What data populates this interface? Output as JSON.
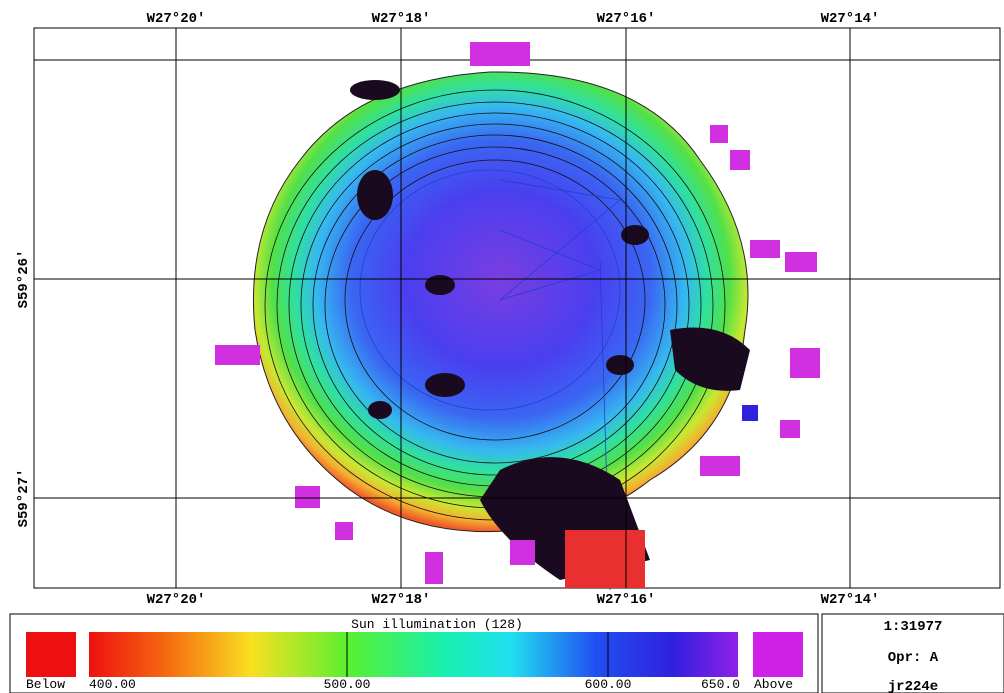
{
  "map": {
    "top_labels": [
      "W27°20′",
      "W27°18′",
      "W27°16′",
      "W27°14′"
    ],
    "bottom_labels": [
      "W27°20′",
      "W27°18′",
      "W27°16′",
      "W27°14′"
    ],
    "left_labels": [
      "S59°26′",
      "S59°27′"
    ]
  },
  "colorbar": {
    "title": "Sun illumination (128)",
    "below": "Below",
    "above": "Above",
    "labels": [
      "400.00",
      "500.00",
      "600.00",
      "650.0"
    ]
  },
  "info": {
    "scale": "1:31977",
    "operator": "Opr: A",
    "cruise": "jr224e"
  }
}
